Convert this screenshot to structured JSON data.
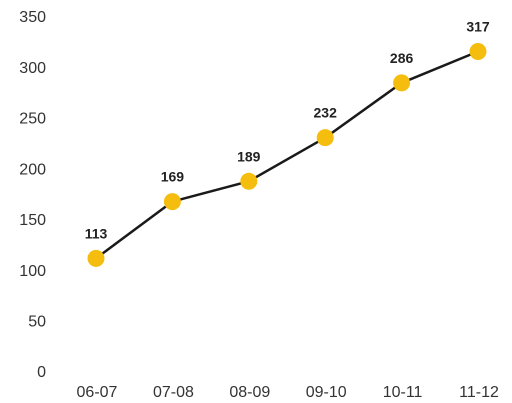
{
  "chart_data": {
    "type": "line",
    "title": "",
    "xlabel": "",
    "ylabel": "",
    "categories": [
      "06-07",
      "07-08",
      "08-09",
      "09-10",
      "10-11",
      "11-12"
    ],
    "series": [
      {
        "values": [
          113,
          169,
          189,
          232,
          286,
          317
        ],
        "line_color": "#1a1a1a",
        "marker_color": "#f5bd0e"
      }
    ],
    "ylim": [
      0,
      350
    ],
    "yticks": [
      0,
      50,
      100,
      150,
      200,
      250,
      300,
      350
    ],
    "grid": false,
    "legend": "none"
  }
}
